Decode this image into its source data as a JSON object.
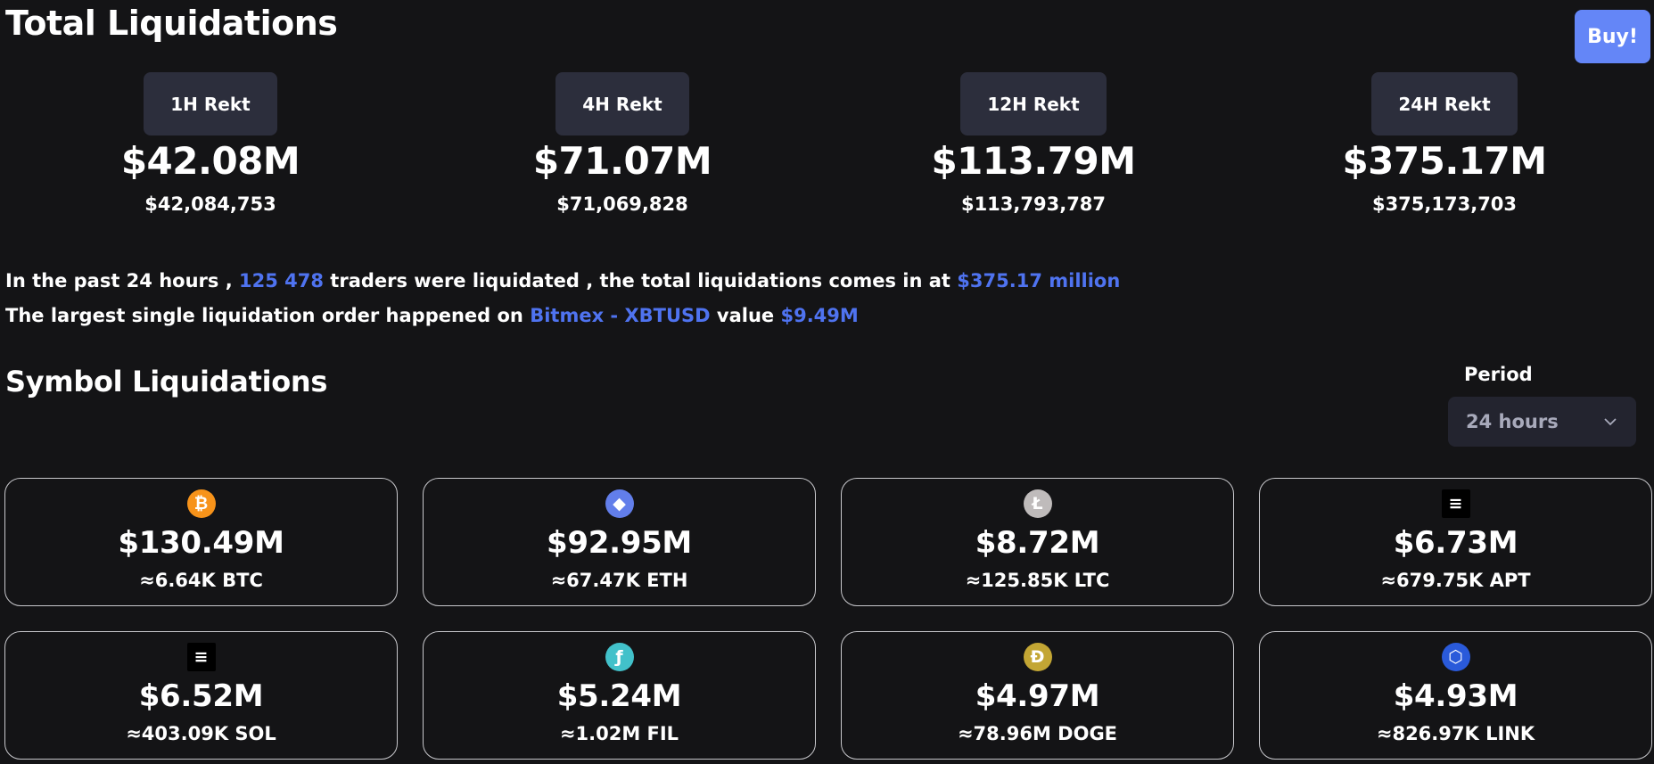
{
  "header": {
    "title": "Total Liquidations",
    "buy_label": "Buy!"
  },
  "rekt": [
    {
      "label": "1H Rekt",
      "short": "$42.08M",
      "exact": "$42,084,753"
    },
    {
      "label": "4H Rekt",
      "short": "$71.07M",
      "exact": "$71,069,828"
    },
    {
      "label": "12H Rekt",
      "short": "$113.79M",
      "exact": "$113,793,787"
    },
    {
      "label": "24H Rekt",
      "short": "$375.17M",
      "exact": "$375,173,703"
    }
  ],
  "summary": {
    "line1_prefix": "In the past 24 hours ,",
    "traders_count": "125 478",
    "line1_mid": "traders were liquidated , the total liquidations comes in at",
    "total_value": "$375.17 million",
    "line2_prefix": "The largest single liquidation order happened on",
    "exchange_pair": "Bitmex - XBTUSD",
    "line2_mid": "value",
    "largest_value": "$9.49M"
  },
  "symbols": {
    "title": "Symbol Liquidations",
    "period_label": "Period",
    "period_value": "24 hours",
    "cards": [
      {
        "icon": "btc-icon",
        "glyph": "₿",
        "color": "#f7931a",
        "value": "$130.49M",
        "amount": "≈6.64K BTC"
      },
      {
        "icon": "eth-icon",
        "glyph": "◆",
        "color": "#627eea",
        "value": "$92.95M",
        "amount": "≈67.47K ETH"
      },
      {
        "icon": "ltc-icon",
        "glyph": "Ł",
        "color": "#bfbbbb",
        "value": "$8.72M",
        "amount": "≈125.85K LTC"
      },
      {
        "icon": "apt-icon",
        "glyph": "≡",
        "color": "#000000",
        "value": "$6.73M",
        "amount": "≈679.75K APT"
      },
      {
        "icon": "sol-icon",
        "glyph": "≡",
        "color": "#000000",
        "value": "$6.52M",
        "amount": "≈403.09K SOL"
      },
      {
        "icon": "fil-icon",
        "glyph": "ƒ",
        "color": "#42c1ca",
        "value": "$5.24M",
        "amount": "≈1.02M FIL"
      },
      {
        "icon": "doge-icon",
        "glyph": "Ð",
        "color": "#c3a634",
        "value": "$4.97M",
        "amount": "≈78.96M DOGE"
      },
      {
        "icon": "link-icon",
        "glyph": "⬡",
        "color": "#2a5ada",
        "value": "$4.93M",
        "amount": "≈826.97K LINK"
      }
    ]
  }
}
